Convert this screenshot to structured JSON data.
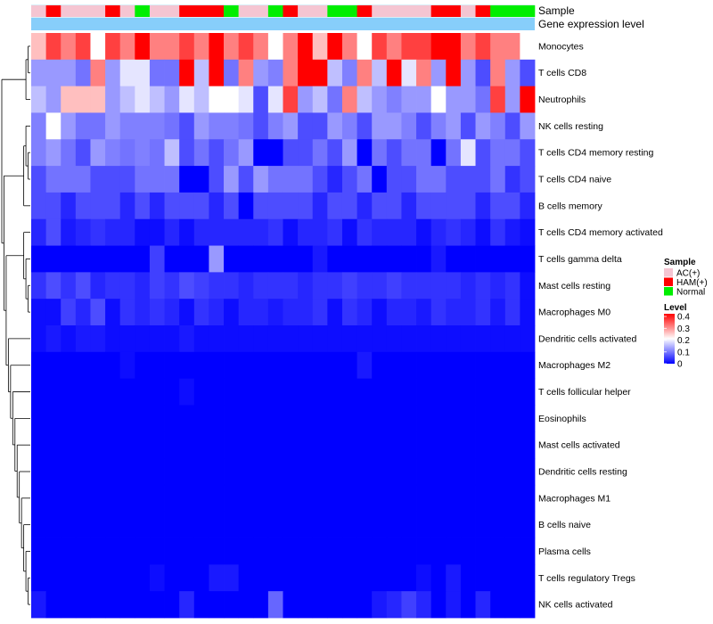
{
  "chart_data": {
    "type": "heatmap",
    "annotation_labels": [
      "Sample",
      "Gene expression level"
    ],
    "rows": [
      "Monocytes",
      "T cells CD8",
      "Neutrophils",
      "NK cells resting",
      "T cells CD4 memory resting",
      "T cells CD4 naive",
      "B cells memory",
      "T cells CD4 memory activated",
      "T cells gamma delta",
      "Mast cells resting",
      "Macrophages M0",
      "Dendritic cells activated",
      "Macrophages M2",
      "T cells follicular helper",
      "Eosinophils",
      "Mast cells activated",
      "Dendritic cells resting",
      "Macrophages M1",
      "B cells naive",
      "Plasma cells",
      "T cells regulatory  Tregs",
      "NK cells activated"
    ],
    "sample_groups": [
      "AC",
      "HAM",
      "AC",
      "AC",
      "AC",
      "HAM",
      "AC",
      "Normal",
      "AC",
      "AC",
      "HAM",
      "HAM",
      "HAM",
      "Normal",
      "AC",
      "AC",
      "Normal",
      "HAM",
      "AC",
      "AC",
      "Normal",
      "Normal",
      "HAM",
      "AC",
      "AC",
      "AC",
      "AC",
      "HAM",
      "HAM",
      "AC",
      "HAM",
      "Normal",
      "Normal",
      "Normal"
    ],
    "values": [
      [
        0.25,
        0.35,
        0.3,
        0.35,
        0.2,
        0.35,
        0.3,
        0.4,
        0.3,
        0.3,
        0.35,
        0.3,
        0.4,
        0.3,
        0.35,
        0.3,
        0.2,
        0.3,
        0.4,
        0.25,
        0.4,
        0.3,
        0.2,
        0.35,
        0.3,
        0.35,
        0.35,
        0.4,
        0.4,
        0.3,
        0.35,
        0.3,
        0.3,
        0.2
      ],
      [
        0.12,
        0.12,
        0.12,
        0.09,
        0.3,
        0.12,
        0.18,
        0.18,
        0.09,
        0.09,
        0.4,
        0.15,
        0.4,
        0.09,
        0.3,
        0.12,
        0.1,
        0.3,
        0.4,
        0.4,
        0.15,
        0.1,
        0.3,
        0.15,
        0.4,
        0.18,
        0.3,
        0.12,
        0.4,
        0.12,
        0.06,
        0.3,
        0.12,
        0.06
      ],
      [
        0.15,
        0.12,
        0.25,
        0.25,
        0.25,
        0.12,
        0.15,
        0.18,
        0.15,
        0.12,
        0.18,
        0.15,
        0.2,
        0.2,
        0.18,
        0.06,
        0.18,
        0.35,
        0.12,
        0.15,
        0.09,
        0.3,
        0.15,
        0.12,
        0.1,
        0.12,
        0.12,
        0.2,
        0.12,
        0.12,
        0.09,
        0.35,
        0.12,
        0.4
      ],
      [
        0.1,
        0.2,
        0.12,
        0.09,
        0.09,
        0.12,
        0.1,
        0.1,
        0.1,
        0.09,
        0.06,
        0.12,
        0.1,
        0.1,
        0.09,
        0.06,
        0.1,
        0.12,
        0.06,
        0.06,
        0.12,
        0.1,
        0.06,
        0.12,
        0.12,
        0.1,
        0.06,
        0.1,
        0.12,
        0.06,
        0.12,
        0.1,
        0.06,
        0.12
      ],
      [
        0.1,
        0.12,
        0.09,
        0.06,
        0.12,
        0.1,
        0.09,
        0.1,
        0.09,
        0.15,
        0.06,
        0.09,
        0.06,
        0.09,
        0.12,
        0.0,
        0.0,
        0.06,
        0.06,
        0.09,
        0.06,
        0.12,
        0.0,
        0.09,
        0.06,
        0.09,
        0.09,
        0.0,
        0.09,
        0.18,
        0.06,
        0.09,
        0.09,
        0.06
      ],
      [
        0.06,
        0.09,
        0.09,
        0.09,
        0.06,
        0.06,
        0.06,
        0.09,
        0.09,
        0.09,
        0.0,
        0.0,
        0.06,
        0.12,
        0.06,
        0.12,
        0.09,
        0.09,
        0.09,
        0.06,
        0.03,
        0.06,
        0.09,
        0.0,
        0.06,
        0.06,
        0.09,
        0.09,
        0.06,
        0.06,
        0.06,
        0.09,
        0.04,
        0.06
      ],
      [
        0.06,
        0.06,
        0.03,
        0.06,
        0.06,
        0.06,
        0.03,
        0.06,
        0.03,
        0.06,
        0.06,
        0.06,
        0.03,
        0.06,
        0.0,
        0.06,
        0.06,
        0.06,
        0.06,
        0.03,
        0.06,
        0.06,
        0.03,
        0.06,
        0.06,
        0.03,
        0.06,
        0.06,
        0.06,
        0.06,
        0.03,
        0.06,
        0.06,
        0.03
      ],
      [
        0.03,
        0.06,
        0.02,
        0.03,
        0.04,
        0.03,
        0.03,
        0.01,
        0.01,
        0.03,
        0.01,
        0.03,
        0.03,
        0.03,
        0.03,
        0.03,
        0.04,
        0.01,
        0.03,
        0.03,
        0.04,
        0.01,
        0.04,
        0.03,
        0.03,
        0.03,
        0.01,
        0.03,
        0.04,
        0.03,
        0.01,
        0.04,
        0.02,
        0.01
      ],
      [
        0.0,
        0.0,
        0.0,
        0.0,
        0.0,
        0.0,
        0.0,
        0.0,
        0.05,
        0.0,
        0.0,
        0.0,
        0.12,
        0.0,
        0.0,
        0.0,
        0.0,
        0.0,
        0.0,
        0.02,
        0.0,
        0.0,
        0.0,
        0.0,
        0.0,
        0.0,
        0.0,
        0.02,
        0.0,
        0.0,
        0.0,
        0.0,
        0.0,
        0.0
      ],
      [
        0.04,
        0.06,
        0.04,
        0.06,
        0.03,
        0.04,
        0.04,
        0.03,
        0.05,
        0.04,
        0.06,
        0.05,
        0.04,
        0.04,
        0.03,
        0.04,
        0.04,
        0.04,
        0.03,
        0.04,
        0.04,
        0.05,
        0.04,
        0.04,
        0.05,
        0.04,
        0.04,
        0.04,
        0.04,
        0.03,
        0.04,
        0.03,
        0.04,
        0.01
      ],
      [
        0.01,
        0.01,
        0.05,
        0.03,
        0.06,
        0.01,
        0.04,
        0.03,
        0.04,
        0.03,
        0.01,
        0.04,
        0.03,
        0.01,
        0.03,
        0.03,
        0.02,
        0.03,
        0.03,
        0.04,
        0.01,
        0.04,
        0.03,
        0.01,
        0.03,
        0.03,
        0.02,
        0.04,
        0.03,
        0.03,
        0.04,
        0.02,
        0.04,
        0.01
      ],
      [
        0.01,
        0.02,
        0.01,
        0.02,
        0.02,
        0.01,
        0.01,
        0.01,
        0.01,
        0.01,
        0.02,
        0.01,
        0.01,
        0.01,
        0.01,
        0.01,
        0.01,
        0.01,
        0.01,
        0.01,
        0.01,
        0.01,
        0.01,
        0.01,
        0.01,
        0.01,
        0.01,
        0.01,
        0.01,
        0.01,
        0.01,
        0.01,
        0.01,
        0.01
      ],
      [
        0.0,
        0.0,
        0.0,
        0.0,
        0.0,
        0.0,
        0.01,
        0.0,
        0.0,
        0.0,
        0.0,
        0.0,
        0.0,
        0.0,
        0.0,
        0.0,
        0.0,
        0.0,
        0.0,
        0.0,
        0.0,
        0.0,
        0.02,
        0.0,
        0.0,
        0.0,
        0.0,
        0.0,
        0.0,
        0.0,
        0.0,
        0.0,
        0.0,
        0.0
      ],
      [
        0.0,
        0.0,
        0.0,
        0.0,
        0.0,
        0.0,
        0.0,
        0.0,
        0.0,
        0.0,
        0.01,
        0.0,
        0.0,
        0.0,
        0.0,
        0.0,
        0.0,
        0.0,
        0.0,
        0.0,
        0.0,
        0.0,
        0.0,
        0.0,
        0.0,
        0.0,
        0.0,
        0.0,
        0.0,
        0.0,
        0.0,
        0.0,
        0.0,
        0.0
      ],
      [
        0.0,
        0.0,
        0.0,
        0.0,
        0.0,
        0.0,
        0.0,
        0.0,
        0.0,
        0.0,
        0.0,
        0.0,
        0.0,
        0.0,
        0.0,
        0.0,
        0.0,
        0.0,
        0.0,
        0.0,
        0.0,
        0.0,
        0.0,
        0.0,
        0.0,
        0.0,
        0.0,
        0.0,
        0.0,
        0.0,
        0.0,
        0.0,
        0.0,
        0.0
      ],
      [
        0.0,
        0.0,
        0.0,
        0.0,
        0.0,
        0.0,
        0.0,
        0.0,
        0.0,
        0.0,
        0.0,
        0.0,
        0.0,
        0.0,
        0.0,
        0.0,
        0.0,
        0.0,
        0.0,
        0.0,
        0.0,
        0.0,
        0.0,
        0.0,
        0.0,
        0.0,
        0.0,
        0.0,
        0.0,
        0.0,
        0.0,
        0.0,
        0.0,
        0.0
      ],
      [
        0.0,
        0.0,
        0.0,
        0.0,
        0.0,
        0.0,
        0.0,
        0.0,
        0.0,
        0.0,
        0.0,
        0.0,
        0.0,
        0.0,
        0.0,
        0.0,
        0.0,
        0.0,
        0.0,
        0.0,
        0.0,
        0.0,
        0.0,
        0.0,
        0.0,
        0.0,
        0.0,
        0.0,
        0.0,
        0.0,
        0.0,
        0.0,
        0.0,
        0.0
      ],
      [
        0.0,
        0.0,
        0.0,
        0.0,
        0.0,
        0.0,
        0.0,
        0.0,
        0.0,
        0.0,
        0.0,
        0.0,
        0.0,
        0.0,
        0.0,
        0.0,
        0.0,
        0.0,
        0.0,
        0.0,
        0.0,
        0.0,
        0.0,
        0.0,
        0.0,
        0.0,
        0.0,
        0.0,
        0.0,
        0.0,
        0.0,
        0.0,
        0.0,
        0.0
      ],
      [
        0.0,
        0.0,
        0.0,
        0.0,
        0.0,
        0.0,
        0.0,
        0.0,
        0.0,
        0.0,
        0.0,
        0.0,
        0.0,
        0.0,
        0.0,
        0.0,
        0.0,
        0.0,
        0.0,
        0.0,
        0.0,
        0.0,
        0.0,
        0.0,
        0.0,
        0.0,
        0.0,
        0.0,
        0.0,
        0.0,
        0.0,
        0.0,
        0.0,
        0.0
      ],
      [
        0.0,
        0.0,
        0.0,
        0.0,
        0.0,
        0.0,
        0.0,
        0.0,
        0.0,
        0.0,
        0.0,
        0.0,
        0.0,
        0.0,
        0.0,
        0.0,
        0.0,
        0.0,
        0.0,
        0.0,
        0.0,
        0.0,
        0.0,
        0.0,
        0.0,
        0.0,
        0.0,
        0.0,
        0.0,
        0.0,
        0.0,
        0.0,
        0.0,
        0.0
      ],
      [
        0.0,
        0.0,
        0.0,
        0.0,
        0.0,
        0.0,
        0.0,
        0.0,
        0.01,
        0.0,
        0.0,
        0.0,
        0.02,
        0.02,
        0.0,
        0.0,
        0.0,
        0.0,
        0.0,
        0.0,
        0.0,
        0.0,
        0.0,
        0.0,
        0.0,
        0.0,
        0.01,
        0.0,
        0.02,
        0.0,
        0.0,
        0.0,
        0.0,
        0.0
      ],
      [
        0.02,
        0.0,
        0.0,
        0.0,
        0.0,
        0.0,
        0.0,
        0.0,
        0.0,
        0.0,
        0.03,
        0.0,
        0.0,
        0.0,
        0.0,
        0.0,
        0.08,
        0.0,
        0.0,
        0.0,
        0.0,
        0.0,
        0.0,
        0.02,
        0.03,
        0.05,
        0.03,
        0.0,
        0.02,
        0.0,
        0.03,
        0.0,
        0.0,
        0.0
      ]
    ],
    "legend": {
      "sample_title": "Sample",
      "groups": [
        {
          "key": "AC",
          "label": "AC(+)",
          "color": "#F5C5D2"
        },
        {
          "key": "HAM",
          "label": "HAM(+)",
          "color": "#FF0000"
        },
        {
          "key": "Normal",
          "label": "Normal",
          "color": "#00EE00"
        }
      ],
      "level_title": "Level",
      "level_ticks": [
        "0.4",
        "0.3",
        "0.2",
        "0.1",
        "0"
      ],
      "level_range": [
        0,
        0.4
      ]
    },
    "colors": {
      "low": "#0000FF",
      "mid": "#FFFFFF",
      "high": "#FF0000",
      "expression_bar": "#87CEFA",
      "annotation_bg": "#D8EFF8"
    }
  }
}
